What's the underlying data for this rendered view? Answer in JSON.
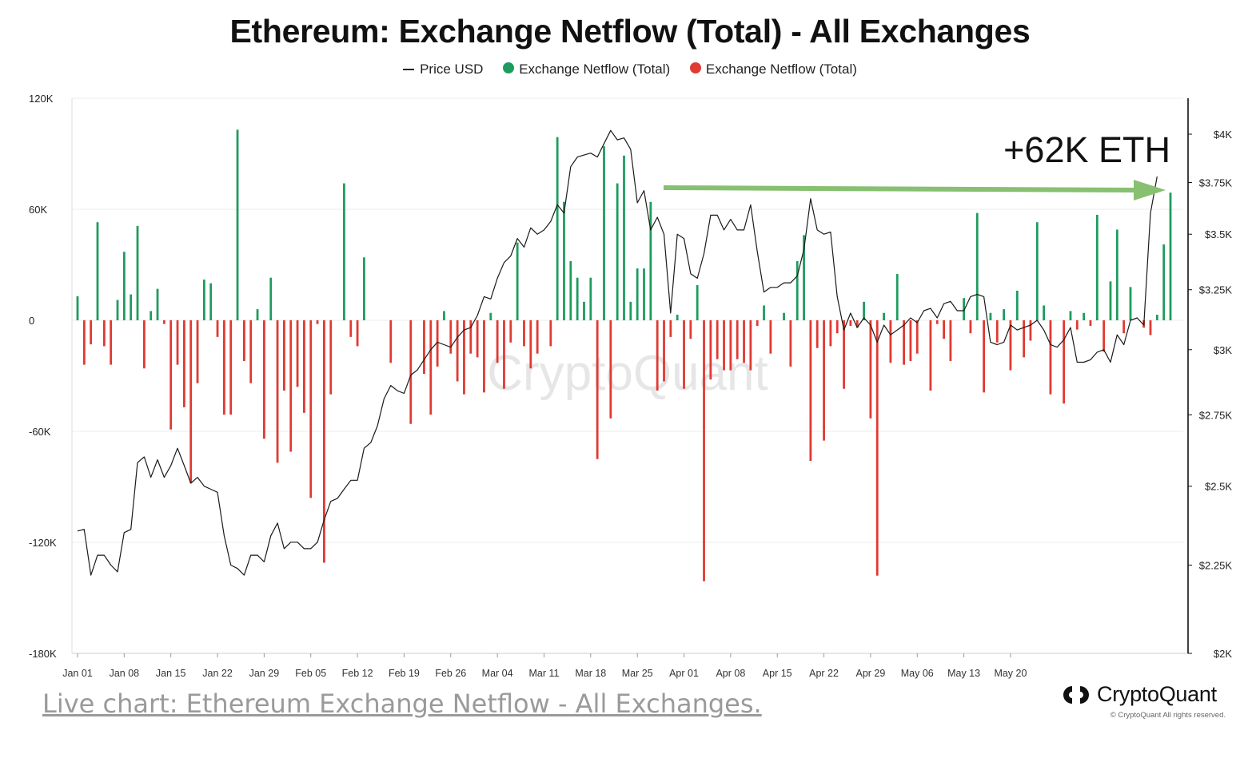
{
  "title": "Ethereum: Exchange Netflow (Total) - All Exchanges",
  "legend": {
    "price": "Price USD",
    "inflow": "Exchange Netflow (Total)",
    "outflow": "Exchange Netflow (Total)"
  },
  "colors": {
    "inflow": "#1e9c5e",
    "outflow": "#e03a32",
    "price": "#1a1a1a",
    "arrow": "#86c070",
    "grid": "#eeeeee"
  },
  "annotation": "+62K ETH",
  "watermark": "CryptoQuant",
  "live_link": "Live chart: Ethereum Exchange Netflow - All Exchanges.",
  "brand": {
    "name": "CryptoQuant",
    "copyright": "© CryptoQuant All rights reserved."
  },
  "chart_data": {
    "type": "bar",
    "x_start": "2024-01-01",
    "x_end": "2024-05-21",
    "x_tick_labels": [
      "Jan 01",
      "Jan 08",
      "Jan 15",
      "Jan 22",
      "Jan 29",
      "Feb 05",
      "Feb 12",
      "Feb 19",
      "Feb 26",
      "Mar 04",
      "Mar 11",
      "Mar 18",
      "Mar 25",
      "Apr 01",
      "Apr 08",
      "Apr 15",
      "Apr 22",
      "Apr 29",
      "May 06",
      "May 13",
      "May 20"
    ],
    "y_left": {
      "min": -180000,
      "max": 120000,
      "ticks": [
        120000,
        60000,
        0,
        -60000,
        -120000,
        -180000
      ],
      "tick_labels": [
        "120K",
        "60K",
        "0",
        "-60K",
        "-120K",
        "-180K"
      ]
    },
    "y_right": {
      "ticks": [
        2000,
        2250,
        2500,
        2750,
        3000,
        3250,
        3500,
        3750,
        4000
      ],
      "tick_labels": [
        "$2K",
        "$2.25K",
        "$2.5K",
        "$2.75K",
        "$3K",
        "$3.25K",
        "$3.5K",
        "$3.75K",
        "$4K"
      ]
    },
    "series": [
      {
        "name": "Exchange Netflow (Total)",
        "type": "bar",
        "values": [
          13000,
          -24000,
          -13000,
          53000,
          -14000,
          -24000,
          11000,
          37000,
          14000,
          51000,
          -26000,
          5000,
          17000,
          -2000,
          -59000,
          -24000,
          -47000,
          -88000,
          -34000,
          22000,
          20000,
          -9000,
          -51000,
          -51000,
          103000,
          -22000,
          -34000,
          6000,
          -64000,
          23000,
          -77000,
          -38000,
          -71000,
          -36000,
          -50000,
          -96000,
          -2000,
          -131000,
          -40000,
          0,
          74000,
          -9000,
          -14000,
          34000,
          0,
          0,
          0,
          -23000,
          0,
          0,
          -56000,
          0,
          -29000,
          -51000,
          -25000,
          5000,
          -18000,
          -33000,
          -40000,
          -18000,
          -20000,
          -39000,
          4000,
          -23000,
          -37000,
          -12000,
          42000,
          -14000,
          -26000,
          -18000,
          0,
          -14000,
          99000,
          64000,
          32000,
          23000,
          10000,
          23000,
          -75000,
          94000,
          -53000,
          74000,
          89000,
          10000,
          28000,
          28000,
          64000,
          -38000,
          -33000,
          -9000,
          3000,
          -37000,
          -10000,
          19000,
          -141000,
          -32000,
          -21000,
          -27000,
          -27000,
          -21000,
          -23000,
          -27000,
          -3000,
          8000,
          -18000,
          0,
          4000,
          -25000,
          32000,
          46000,
          -76000,
          -15000,
          -65000,
          -14000,
          -7000,
          -37000,
          -3000,
          -4000,
          10000,
          -53000,
          -138000,
          4000,
          -23000,
          25000,
          -24000,
          -22000,
          -18000,
          0,
          -38000,
          -2000,
          -10000,
          -22000,
          0,
          12000,
          -7000,
          58000,
          -39000,
          4000,
          -12000,
          6000,
          -27000,
          16000,
          -20000,
          -11000,
          53000,
          8000,
          -40000,
          0,
          -45000,
          5000,
          -5000,
          4000,
          -3000,
          57000,
          -17000,
          21000,
          49000,
          -7000,
          18000,
          0,
          -4000,
          -8000,
          3000,
          41000,
          69000
        ],
        "color_positive": "#1e9c5e",
        "color_negative": "#e03a32"
      },
      {
        "name": "Price USD",
        "type": "line",
        "axis": "right",
        "values": [
          2355,
          2360,
          2220,
          2280,
          2280,
          2250,
          2230,
          2350,
          2360,
          2580,
          2600,
          2530,
          2590,
          2530,
          2570,
          2630,
          2570,
          2510,
          2530,
          2500,
          2490,
          2480,
          2340,
          2250,
          2240,
          2220,
          2280,
          2280,
          2260,
          2340,
          2380,
          2300,
          2320,
          2320,
          2300,
          2300,
          2320,
          2390,
          2450,
          2460,
          2490,
          2520,
          2520,
          2630,
          2650,
          2710,
          2810,
          2860,
          2840,
          2830,
          2900,
          2920,
          2960,
          3000,
          3030,
          3020,
          3010,
          3050,
          3080,
          3090,
          3140,
          3220,
          3210,
          3300,
          3370,
          3400,
          3480,
          3440,
          3530,
          3500,
          3520,
          3560,
          3640,
          3600,
          3830,
          3880,
          3890,
          3900,
          3880,
          3950,
          4020,
          3970,
          3980,
          3920,
          3650,
          3710,
          3520,
          3580,
          3500,
          3150,
          3500,
          3480,
          3320,
          3300,
          3410,
          3590,
          3590,
          3520,
          3570,
          3520,
          3520,
          3640,
          3420,
          3240,
          3260,
          3260,
          3280,
          3280,
          3310,
          3430,
          3670,
          3520,
          3500,
          3510,
          3220,
          3080,
          3150,
          3090,
          3130,
          3100,
          3030,
          3100,
          3060,
          3080,
          3100,
          3130,
          3110,
          3160,
          3170,
          3130,
          3190,
          3200,
          3160,
          3160,
          3220,
          3230,
          3220,
          3030,
          3020,
          3030,
          3100,
          3080,
          3090,
          3100,
          3120,
          3080,
          3020,
          3010,
          3040,
          3090,
          2950,
          2950,
          2960,
          2990,
          3000,
          2950,
          3060,
          3020,
          3120,
          3130,
          3100,
          3600,
          3780
        ]
      }
    ]
  }
}
